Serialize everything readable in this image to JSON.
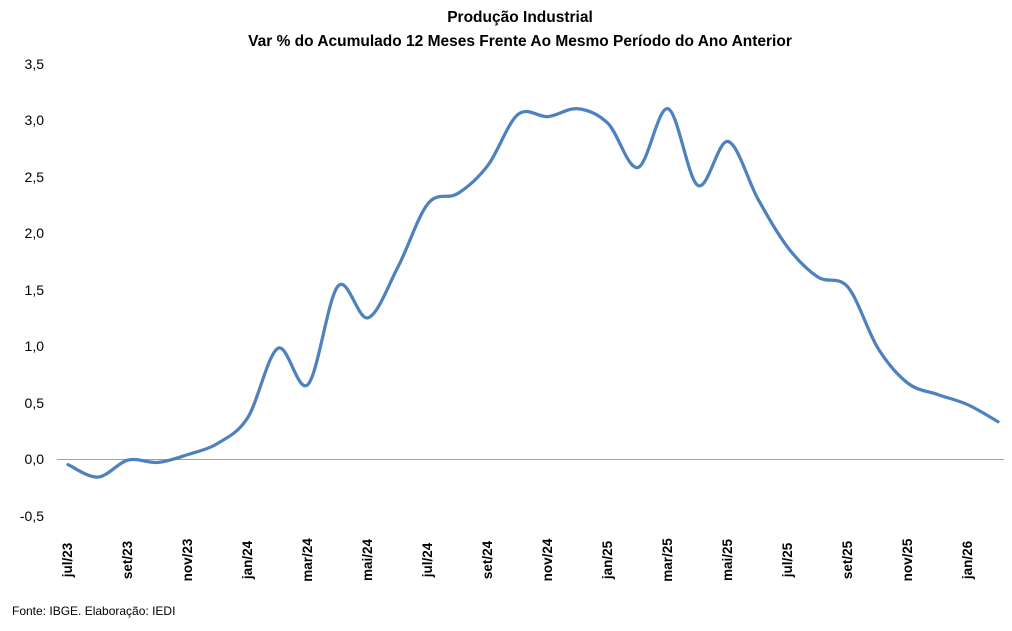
{
  "chart": {
    "title": "Produção Industrial",
    "subtitle": "Var % do Acumulado 12 Meses Frente Ao Mesmo Período do Ano Anterior",
    "source_note": "Fonte: IBGE. Elaboração: IEDI",
    "line_color": "#4F81BD",
    "zero_line_color": "#A0A0A0",
    "text_color": "#000000"
  },
  "chart_data": {
    "type": "line",
    "title": "Produção Industrial",
    "subtitle": "Var % do Acumulado 12 Meses Frente Ao Mesmo Período do Ano Anterior",
    "x": [
      "jul/23",
      "ago/23",
      "set/23",
      "out/23",
      "nov/23",
      "dez/23",
      "jan/24",
      "fev/24",
      "mar/24",
      "abr/24",
      "mai/24",
      "jun/24",
      "jul/24",
      "ago/24",
      "set/24",
      "out/24",
      "nov/24",
      "dez/24",
      "jan/25",
      "fev/25",
      "mar/25",
      "abr/25",
      "mai/25",
      "jun/25",
      "jul/25",
      "ago/25",
      "set/25",
      "out/25",
      "nov/25",
      "dez/25",
      "jan/26",
      "fev/26"
    ],
    "values": [
      -0.05,
      -0.16,
      -0.01,
      -0.03,
      0.04,
      0.14,
      0.37,
      0.98,
      0.66,
      1.53,
      1.25,
      1.7,
      2.26,
      2.35,
      2.6,
      3.05,
      3.03,
      3.1,
      2.97,
      2.58,
      3.1,
      2.42,
      2.81,
      2.3,
      1.87,
      1.61,
      1.52,
      0.98,
      0.67,
      0.57,
      0.48,
      0.33
    ],
    "x_tick_labels": [
      "jul/23",
      "set/23",
      "nov/23",
      "jan/24",
      "mar/24",
      "mai/24",
      "jul/24",
      "set/24",
      "nov/24",
      "jan/25",
      "mar/25",
      "mai/25",
      "jul/25",
      "set/25",
      "nov/25",
      "jan/26"
    ],
    "y_tick_labels": [
      "3,5",
      "3,0",
      "2,5",
      "2,0",
      "1,5",
      "1,0",
      "0,5",
      "0,0",
      "-0,5"
    ],
    "ylim": [
      -0.5,
      3.5
    ],
    "series_name": "Var % acumulado 12 meses",
    "legend": "none",
    "grid": "zero-line-only",
    "source": "Fonte: IBGE. Elaboração: IEDI"
  }
}
